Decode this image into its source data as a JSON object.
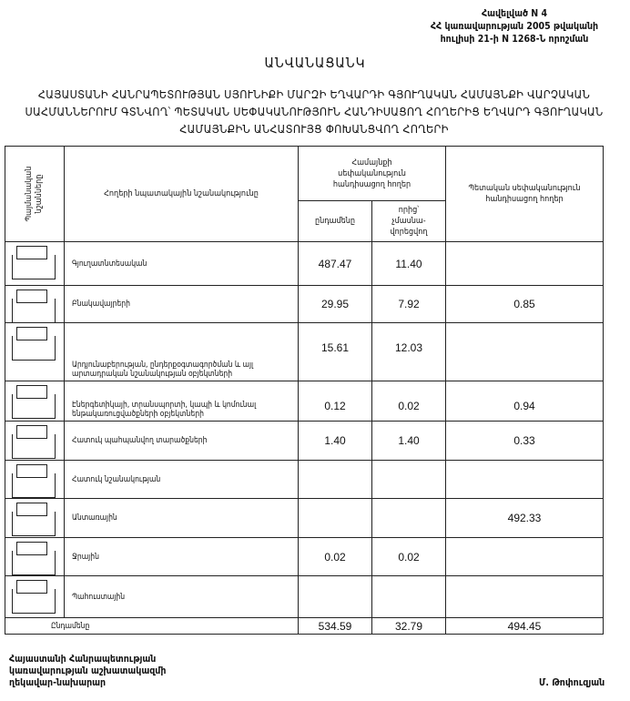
{
  "annex": {
    "line1": "Հավելված N 4",
    "line2": "ՀՀ կառավարության 2005 թվականի",
    "line3": "հուլիսի 21-ի N 1268-Ն որոշման"
  },
  "title": "ԱՆՎԱՆԱՑԱՆԿ",
  "heading": "ՀԱՅԱՍՏԱՆԻ ՀԱՆՐԱՊԵՏՈՒԹՅԱՆ ՍՅՈՒՆԻՔԻ ՄԱՐԶԻ ԵՂՎԱՐԴԻ ԳՅՈՒՂԱԿԱՆ ՀԱՄԱՅՆՔԻ ՎԱՐՉԱԿԱՆ ՍԱՀՄԱՆՆԵՐՈՒՄ ԳՏՆՎՈՂ՝ ՊԵՏԱԿԱՆ ՍԵՓԱԿԱՆՈՒԹՅՈՒՆ ՀԱՆԴԻՍԱՑՈՂ ՀՈՂԵՐԻՑ ԵՂՎԱՐԴ ԳՅՈՒՂԱԿԱՆ ՀԱՄԱՅՆՔԻՆ ԱՆՀԱՏՈՒՅՑ ՓՈԽԱՆՑՎՈՂ ՀՈՂԵՐԻ",
  "table": {
    "headers": {
      "symbols": "Պայմանական նշանները",
      "purpose": "Հողերի նպատակային նշանակությունը",
      "community": "Համայնքի սեփականություն հանդիսացող հողեր",
      "total": "ընդամենը",
      "of_which": "որից՝ չմասնա-վորեցվող",
      "state": "Պետական սեփականություն հանդիսացող հողեր"
    },
    "rows": [
      {
        "name": "Գյուղատնտեսական",
        "total": "487.47",
        "of_which": "11.40",
        "state": ""
      },
      {
        "name": "Բնակավայրերի",
        "total": "29.95",
        "of_which": "7.92",
        "state": "0.85"
      },
      {
        "name": "Արդյունաբերության, ընդերքօգտագործման և այլ արտադրական նշանակության օբյեկտների",
        "total": "15.61",
        "of_which": "12.03",
        "state": ""
      },
      {
        "name": "Էներգետիկայի, տրանսպորտի, կապի և կոմունալ ենթակառուցվածքների օբյեկտների",
        "total": "0.12",
        "of_which": "0.02",
        "state": "0.94"
      },
      {
        "name": "Հատուկ պահպանվող տարածքների",
        "total": "1.40",
        "of_which": "1.40",
        "state": "0.33"
      },
      {
        "name": "Հատուկ նշանակության",
        "total": "",
        "of_which": "",
        "state": ""
      },
      {
        "name": "Անտառային",
        "total": "",
        "of_which": "",
        "state": "492.33"
      },
      {
        "name": "Ջրային",
        "total": "0.02",
        "of_which": "0.02",
        "state": ""
      },
      {
        "name": "Պահուստային",
        "total": "",
        "of_which": "",
        "state": ""
      }
    ],
    "totals": {
      "label": "Ընդամենը",
      "total": "534.59",
      "of_which": "32.79",
      "state": "494.45"
    }
  },
  "footer": {
    "line1": "Հայաստանի Հանրապետության",
    "line2": "կառավարության աշխատակազմի",
    "line3": "ղեկավար-նախարար",
    "signatory": "Մ. Թոփուզյան"
  }
}
